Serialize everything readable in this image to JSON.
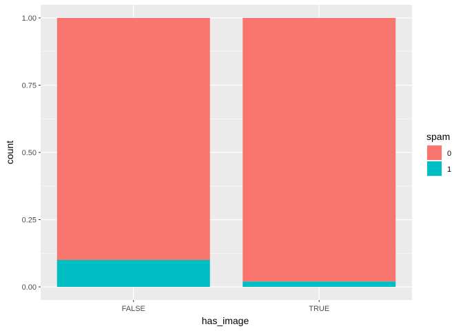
{
  "chart_data": {
    "type": "bar",
    "stacked": true,
    "position": "fill",
    "categories": [
      "FALSE",
      "TRUE"
    ],
    "series": [
      {
        "name": "0",
        "color": "#F8766D",
        "values": [
          0.9,
          0.98
        ]
      },
      {
        "name": "1",
        "color": "#00BFC4",
        "values": [
          0.1,
          0.02
        ]
      }
    ],
    "xlabel": "has_image",
    "ylabel": "count",
    "ylim": [
      0,
      1
    ],
    "yticks": [
      "0.00",
      "0.25",
      "0.50",
      "0.75",
      "1.00"
    ],
    "ytick_values": [
      0,
      0.25,
      0.5,
      0.75,
      1.0
    ],
    "legend": {
      "title": "spam",
      "position": "right"
    },
    "grid": true,
    "panel_background": "#EBEBEB",
    "grid_color": "#FFFFFF"
  }
}
